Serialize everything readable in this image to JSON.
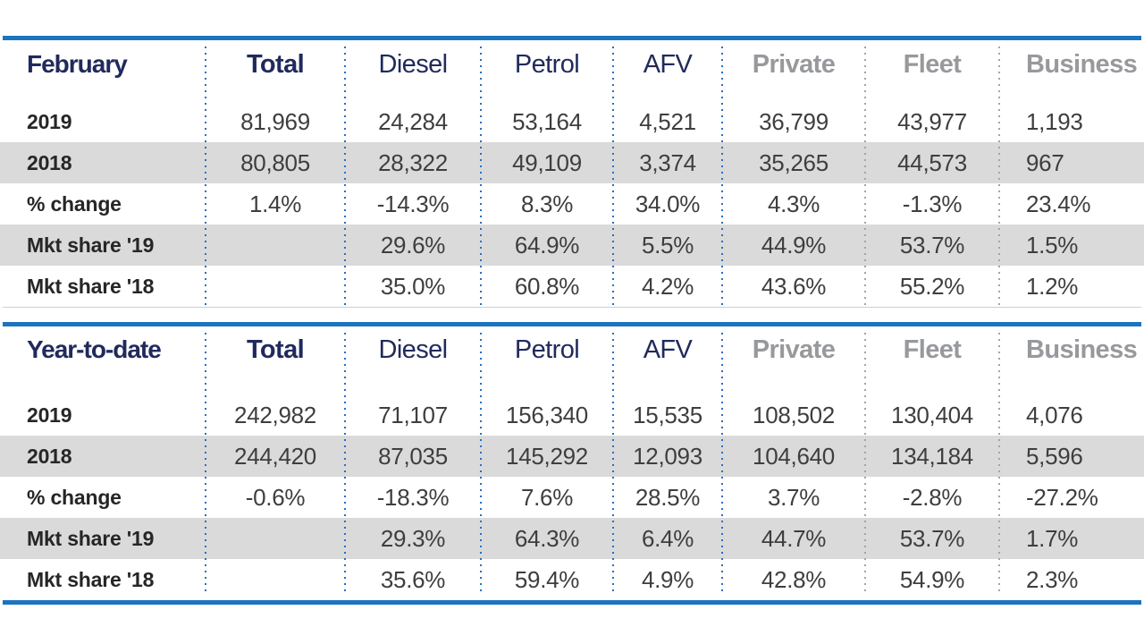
{
  "colors": {
    "rule_blue": "#1C74BF",
    "navy": "#212A5C",
    "gray_header": "#97999C",
    "row_shade": "#DADADA",
    "dot_blue": "#2A6FBE",
    "dot_gray": "#A2A4A7",
    "value_text": "#3E3E3E",
    "label_text": "#262626",
    "hairline": "#CFCFCF",
    "background": "#FFFFFF"
  },
  "chart_data": [
    {
      "type": "table",
      "title": "February",
      "columns": [
        "Total",
        "Diesel",
        "Petrol",
        "AFV",
        "Private",
        "Fleet",
        "Business"
      ],
      "rows": [
        {
          "label": "2019",
          "values": [
            "81,969",
            "24,284",
            "53,164",
            "4,521",
            "36,799",
            "43,977",
            "1,193"
          ]
        },
        {
          "label": "2018",
          "values": [
            "80,805",
            "28,322",
            "49,109",
            "3,374",
            "35,265",
            "44,573",
            "967"
          ]
        },
        {
          "label": "% change",
          "values": [
            "1.4%",
            "-14.3%",
            "8.3%",
            "34.0%",
            "4.3%",
            "-1.3%",
            "23.4%"
          ]
        },
        {
          "label": "Mkt share '19",
          "values": [
            "",
            "29.6%",
            "64.9%",
            "5.5%",
            "44.9%",
            "53.7%",
            "1.5%"
          ]
        },
        {
          "label": "Mkt share '18",
          "values": [
            "",
            "35.0%",
            "60.8%",
            "4.2%",
            "43.6%",
            "55.2%",
            "1.2%"
          ]
        }
      ]
    },
    {
      "type": "table",
      "title": "Year-to-date",
      "columns": [
        "Total",
        "Diesel",
        "Petrol",
        "AFV",
        "Private",
        "Fleet",
        "Business"
      ],
      "rows": [
        {
          "label": "2019",
          "values": [
            "242,982",
            "71,107",
            "156,340",
            "15,535",
            "108,502",
            "130,404",
            "4,076"
          ]
        },
        {
          "label": "2018",
          "values": [
            "244,420",
            "87,035",
            "145,292",
            "12,093",
            "104,640",
            "134,184",
            "5,596"
          ]
        },
        {
          "label": "% change",
          "values": [
            "-0.6%",
            "-18.3%",
            "7.6%",
            "28.5%",
            "3.7%",
            "-2.8%",
            "-27.2%"
          ]
        },
        {
          "label": "Mkt share '19",
          "values": [
            "",
            "29.3%",
            "64.3%",
            "6.4%",
            "44.7%",
            "53.7%",
            "1.7%"
          ]
        },
        {
          "label": "Mkt share '18",
          "values": [
            "",
            "35.6%",
            "59.4%",
            "4.9%",
            "42.8%",
            "54.9%",
            "2.3%"
          ]
        }
      ]
    }
  ]
}
